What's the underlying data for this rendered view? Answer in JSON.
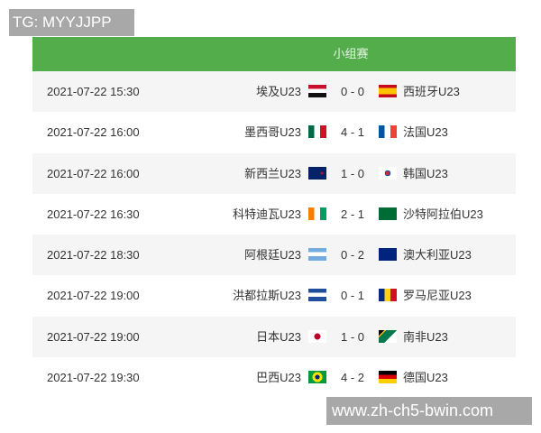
{
  "watermarks": {
    "top": "TG: MYYJJPP",
    "bottom": "www.zh-ch5-bwin.com"
  },
  "header": {
    "title": "小组赛"
  },
  "colors": {
    "header": "#53ad4b",
    "row_alt": "#f5f5f5"
  },
  "matches": [
    {
      "time": "2021-07-22 15:30",
      "home": "埃及U23",
      "home_flag": "egypt",
      "score": "0 - 0",
      "away": "西班牙U23",
      "away_flag": "spain"
    },
    {
      "time": "2021-07-22 16:00",
      "home": "墨西哥U23",
      "home_flag": "mexico",
      "score": "4 - 1",
      "away": "法国U23",
      "away_flag": "france"
    },
    {
      "time": "2021-07-22 16:00",
      "home": "新西兰U23",
      "home_flag": "new-zealand",
      "score": "1 - 0",
      "away": "韩国U23",
      "away_flag": "south-korea"
    },
    {
      "time": "2021-07-22 16:30",
      "home": "科特迪瓦U23",
      "home_flag": "ivory-coast",
      "score": "2 - 1",
      "away": "沙特阿拉伯U23",
      "away_flag": "saudi-arabia"
    },
    {
      "time": "2021-07-22 18:30",
      "home": "阿根廷U23",
      "home_flag": "argentina",
      "score": "0 - 2",
      "away": "澳大利亚U23",
      "away_flag": "australia"
    },
    {
      "time": "2021-07-22 19:00",
      "home": "洪都拉斯U23",
      "home_flag": "honduras",
      "score": "0 - 1",
      "away": "罗马尼亚U23",
      "away_flag": "romania"
    },
    {
      "time": "2021-07-22 19:00",
      "home": "日本U23",
      "home_flag": "japan",
      "score": "1 - 0",
      "away": "南非U23",
      "away_flag": "south-africa"
    },
    {
      "time": "2021-07-22 19:30",
      "home": "巴西U23",
      "home_flag": "brazil",
      "score": "4 - 2",
      "away": "德国U23",
      "away_flag": "germany"
    }
  ]
}
